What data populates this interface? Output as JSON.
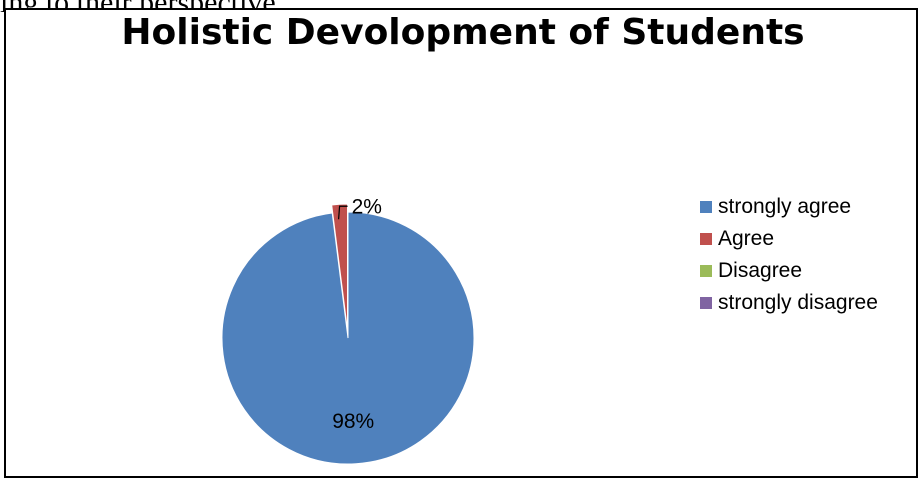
{
  "page": {
    "cropped_heading": "ing to their perspective"
  },
  "chart_data": {
    "type": "pie",
    "title": "Holistic Devolopment of Students",
    "categories": [
      "strongly agree",
      "Agree",
      "Disagree",
      "strongly disagree"
    ],
    "values": [
      98,
      2,
      0,
      0
    ],
    "labels": [
      "98%",
      "2%",
      "",
      ""
    ],
    "colors": [
      "#4F81BD",
      "#C0504D",
      "#9BBB59",
      "#8064A2"
    ],
    "legend_position": "right",
    "exploded_slice": "Agree"
  }
}
